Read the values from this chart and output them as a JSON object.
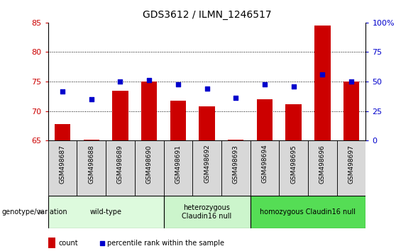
{
  "title": "GDS3612 / ILMN_1246517",
  "samples": [
    "GSM498687",
    "GSM498688",
    "GSM498689",
    "GSM498690",
    "GSM498691",
    "GSM498692",
    "GSM498693",
    "GSM498694",
    "GSM498695",
    "GSM498696",
    "GSM498697"
  ],
  "bar_values": [
    67.8,
    65.2,
    73.5,
    75.0,
    71.8,
    70.8,
    65.2,
    72.0,
    71.2,
    84.5,
    75.0
  ],
  "dot_values": [
    73.3,
    72.0,
    75.0,
    75.2,
    74.5,
    73.8,
    72.2,
    74.5,
    74.2,
    76.2,
    75.0
  ],
  "bar_color": "#cc0000",
  "dot_color": "#0000cc",
  "ylim_left": [
    65,
    85
  ],
  "ylim_right": [
    0,
    100
  ],
  "yticks_left": [
    65,
    70,
    75,
    80,
    85
  ],
  "yticks_right": [
    0,
    25,
    50,
    75,
    100
  ],
  "ytick_labels_right": [
    "0",
    "25",
    "50",
    "75",
    "100%"
  ],
  "groups": [
    {
      "label": "wild-type",
      "start": 0,
      "end": 3,
      "color": "#ddfadd"
    },
    {
      "label": "heterozygous\nClaudin16 null",
      "start": 4,
      "end": 6,
      "color": "#ccf5cc"
    },
    {
      "label": "homozygous Claudin16 null",
      "start": 7,
      "end": 10,
      "color": "#55dd55"
    }
  ],
  "legend_count_color": "#cc0000",
  "legend_dot_color": "#0000cc",
  "legend_count_label": "count",
  "legend_dot_label": "percentile rank within the sample",
  "genotype_label": "genotype/variation",
  "sample_box_color": "#d8d8d8",
  "plot_bg": "#ffffff"
}
